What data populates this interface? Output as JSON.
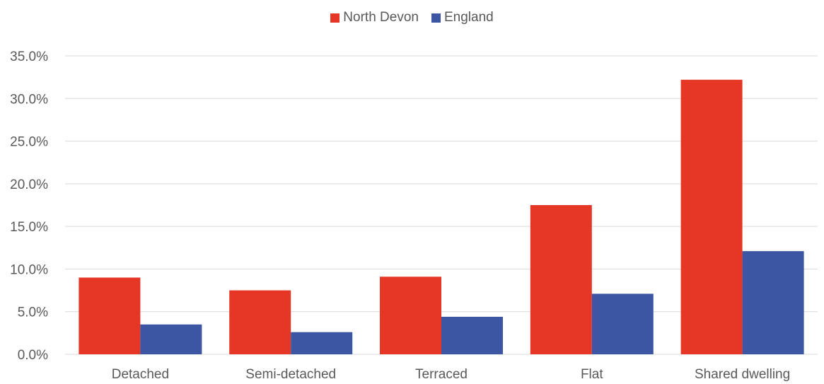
{
  "chart_data": {
    "type": "bar",
    "categories": [
      "Detached",
      "Semi-detached",
      "Terraced",
      "Flat",
      "Shared dwelling"
    ],
    "series": [
      {
        "name": "North Devon",
        "color": "#e53626",
        "values": [
          9.0,
          7.5,
          9.1,
          17.5,
          32.2
        ]
      },
      {
        "name": "England",
        "color": "#3c56a3",
        "values": [
          3.5,
          2.6,
          4.4,
          7.1,
          12.1
        ]
      }
    ],
    "ylim": [
      0,
      35
    ],
    "yticks": [
      "0.0%",
      "5.0%",
      "10.0%",
      "15.0%",
      "20.0%",
      "25.0%",
      "30.0%",
      "35.0%"
    ],
    "ytick_values": [
      0,
      5,
      10,
      15,
      20,
      25,
      30,
      35
    ],
    "grid": true,
    "legend_position": "top-center",
    "gridline_color": "#d9d9d9"
  }
}
